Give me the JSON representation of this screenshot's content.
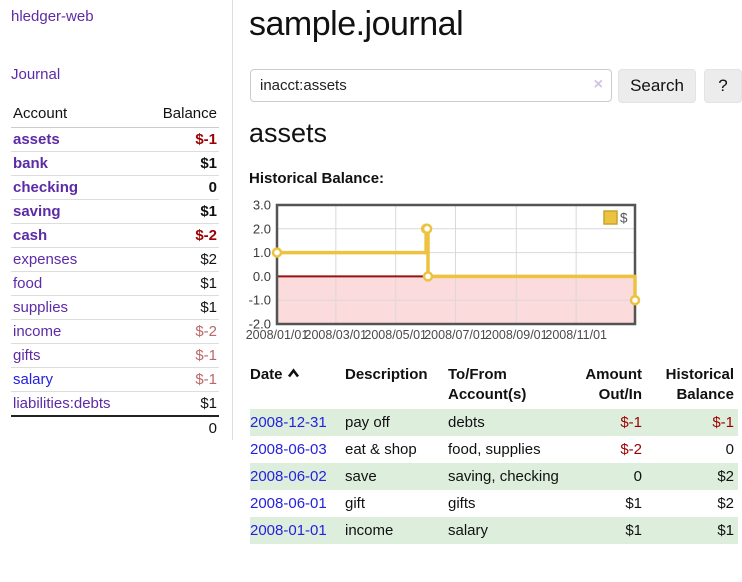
{
  "app": {
    "brand": "hledger-web",
    "nav_journal": "Journal"
  },
  "sidebar": {
    "col_account": "Account",
    "col_balance": "Balance",
    "accounts": [
      {
        "name": "assets",
        "level": 0,
        "balance": "$-1",
        "bold": true,
        "balance_style": "neg-strong"
      },
      {
        "name": "bank",
        "level": 1,
        "balance": "$1",
        "bold": true,
        "balance_style": "plain"
      },
      {
        "name": "checking",
        "level": 2,
        "balance": "0",
        "bold": true,
        "balance_style": "plain"
      },
      {
        "name": "saving",
        "level": 2,
        "balance": "$1",
        "bold": true,
        "balance_style": "plain"
      },
      {
        "name": "cash",
        "level": 1,
        "balance": "$-2",
        "bold": true,
        "balance_style": "neg-strong"
      },
      {
        "name": "expenses",
        "level": 0,
        "balance": "$2",
        "bold": false,
        "balance_style": "plain"
      },
      {
        "name": "food",
        "level": 1,
        "balance": "$1",
        "bold": false,
        "balance_style": "plain"
      },
      {
        "name": "supplies",
        "level": 1,
        "balance": "$1",
        "bold": false,
        "balance_style": "plain"
      },
      {
        "name": "income",
        "level": 0,
        "balance": "$-2",
        "bold": false,
        "balance_style": "neg-soft"
      },
      {
        "name": "gifts",
        "level": 1,
        "balance": "$-1",
        "bold": false,
        "balance_style": "neg-soft"
      },
      {
        "name": "salary",
        "level": 1,
        "balance": "$-1",
        "bold": false,
        "balance_style": "neg-soft",
        "link_blue": true
      },
      {
        "name": "liabilities:debts",
        "level": 0,
        "balance": "$1",
        "bold": false,
        "balance_style": "plain"
      }
    ],
    "total": "0"
  },
  "header": {
    "title": "sample.journal"
  },
  "search": {
    "value": "inacct:assets",
    "clear_icon": "×",
    "button_label": "Search",
    "help_label": "?"
  },
  "account_page": {
    "heading": "assets",
    "chart_label": "Historical Balance:"
  },
  "chart_data": {
    "type": "line",
    "title": "Historical Balance:",
    "series": [
      {
        "name": "$",
        "color": "#edc240",
        "step": true,
        "points": [
          [
            "2008-01-01",
            1
          ],
          [
            "2008-06-01",
            2
          ],
          [
            "2008-06-02",
            2
          ],
          [
            "2008-06-03",
            0
          ],
          [
            "2008-12-31",
            -1
          ]
        ]
      }
    ],
    "x_ticks": [
      "2008/01/01",
      "2008/03/01",
      "2008/05/01",
      "2008/07/01",
      "2008/09/01",
      "2008/11/01"
    ],
    "y_ticks": [
      "3.0",
      "2.0",
      "1.0",
      "0.0",
      "-1.0",
      "-2.0"
    ],
    "ylim": [
      -2,
      3
    ],
    "xlim": [
      "2008-01-01",
      "2008-12-31"
    ],
    "grid": true,
    "legend_position": "top-right",
    "legend_label": "$",
    "colors": {
      "border": "#545454",
      "gridline": "#d9d9d9",
      "zero_line": "#991111",
      "negative_region": "#fbdbdb",
      "marker_fill": "#ffffff",
      "tick_text": "#4a4a4a"
    }
  },
  "register": {
    "headers": {
      "date": "Date",
      "description": "Description",
      "accounts": "To/From Account(s)",
      "amount": "Amount Out/In",
      "balance": "Historical Balance"
    },
    "sort_icon": "chevron-up",
    "rows": [
      {
        "date": "2008-12-31",
        "description": "pay off",
        "accounts": "debts",
        "amount": "$-1",
        "amount_neg": true,
        "balance": "$-1",
        "balance_neg": true
      },
      {
        "date": "2008-06-03",
        "description": "eat & shop",
        "accounts": "food, supplies",
        "amount": "$-2",
        "amount_neg": true,
        "balance": "0",
        "balance_neg": false
      },
      {
        "date": "2008-06-02",
        "description": "save",
        "accounts": "saving, checking",
        "amount": "0",
        "amount_neg": false,
        "balance": "$2",
        "balance_neg": false
      },
      {
        "date": "2008-06-01",
        "description": "gift",
        "accounts": "gifts",
        "amount": "$1",
        "amount_neg": false,
        "balance": "$2",
        "balance_neg": false
      },
      {
        "date": "2008-01-01",
        "description": "income",
        "accounts": "salary",
        "amount": "$1",
        "amount_neg": false,
        "balance": "$1",
        "balance_neg": false
      }
    ]
  }
}
